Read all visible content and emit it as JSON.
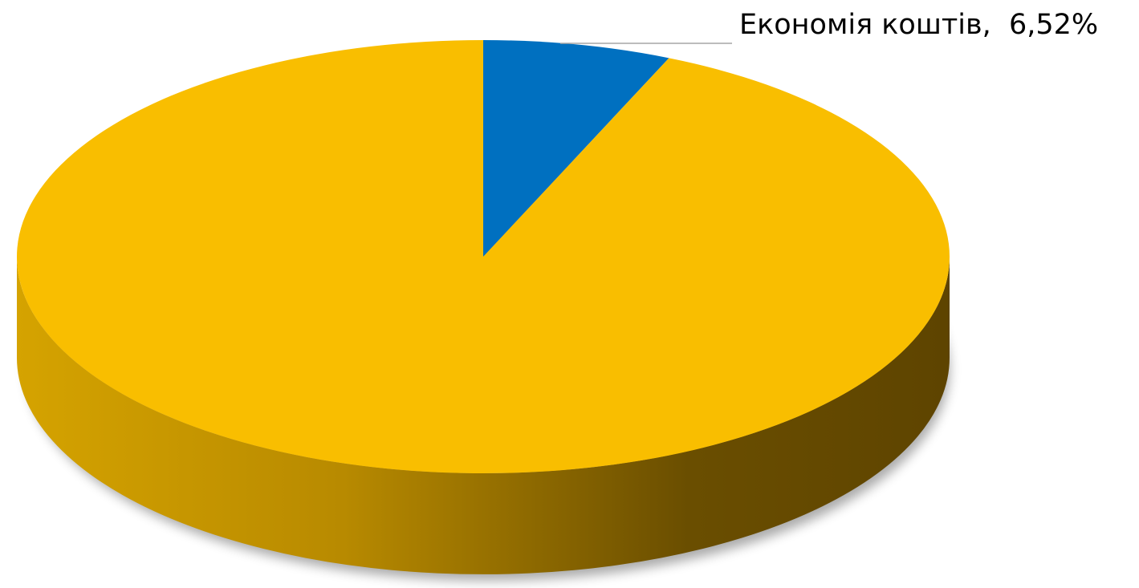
{
  "chart_data": {
    "type": "pie",
    "style": "3d",
    "slices": [
      {
        "label": "Економія коштів",
        "value": 6.52,
        "display": "6,52%",
        "color": "#0070C0"
      },
      {
        "label": "",
        "value": 93.48,
        "display": "",
        "color": "#F9BE00"
      }
    ],
    "data_labels": [
      {
        "text": "Економія коштів,  6,52%",
        "slice_index": 0
      }
    ],
    "colors": {
      "side_light": "#D5A300",
      "side_dark": "#684C00"
    }
  }
}
